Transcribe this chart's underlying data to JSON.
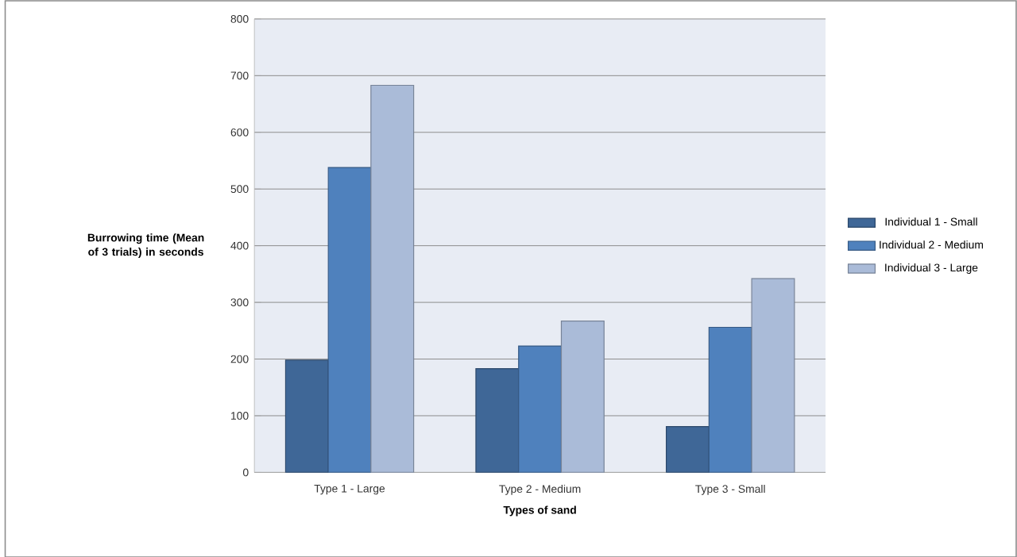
{
  "chart_data": {
    "type": "bar",
    "xlabel": "Types of sand",
    "ylabel": "Burrowing time (Mean of 3 trials) in seconds",
    "categories": [
      "Type 1 - Large",
      "Type 2 - Medium",
      "Type 3 - Small"
    ],
    "series": [
      {
        "name": "Individual 1 - Small",
        "color": "#3f6797",
        "values": [
          198,
          183,
          81
        ]
      },
      {
        "name": "Individual 2 - Medium",
        "color": "#4f81bd",
        "values": [
          538,
          223,
          256
        ]
      },
      {
        "name": "Individual 3 - Large",
        "color": "#aabbd8",
        "values": [
          683,
          267,
          342
        ]
      }
    ],
    "ylim": [
      0,
      800
    ],
    "yticks": [
      0,
      100,
      200,
      300,
      400,
      500,
      600,
      700,
      800
    ],
    "grid": "y",
    "legend": "right"
  }
}
